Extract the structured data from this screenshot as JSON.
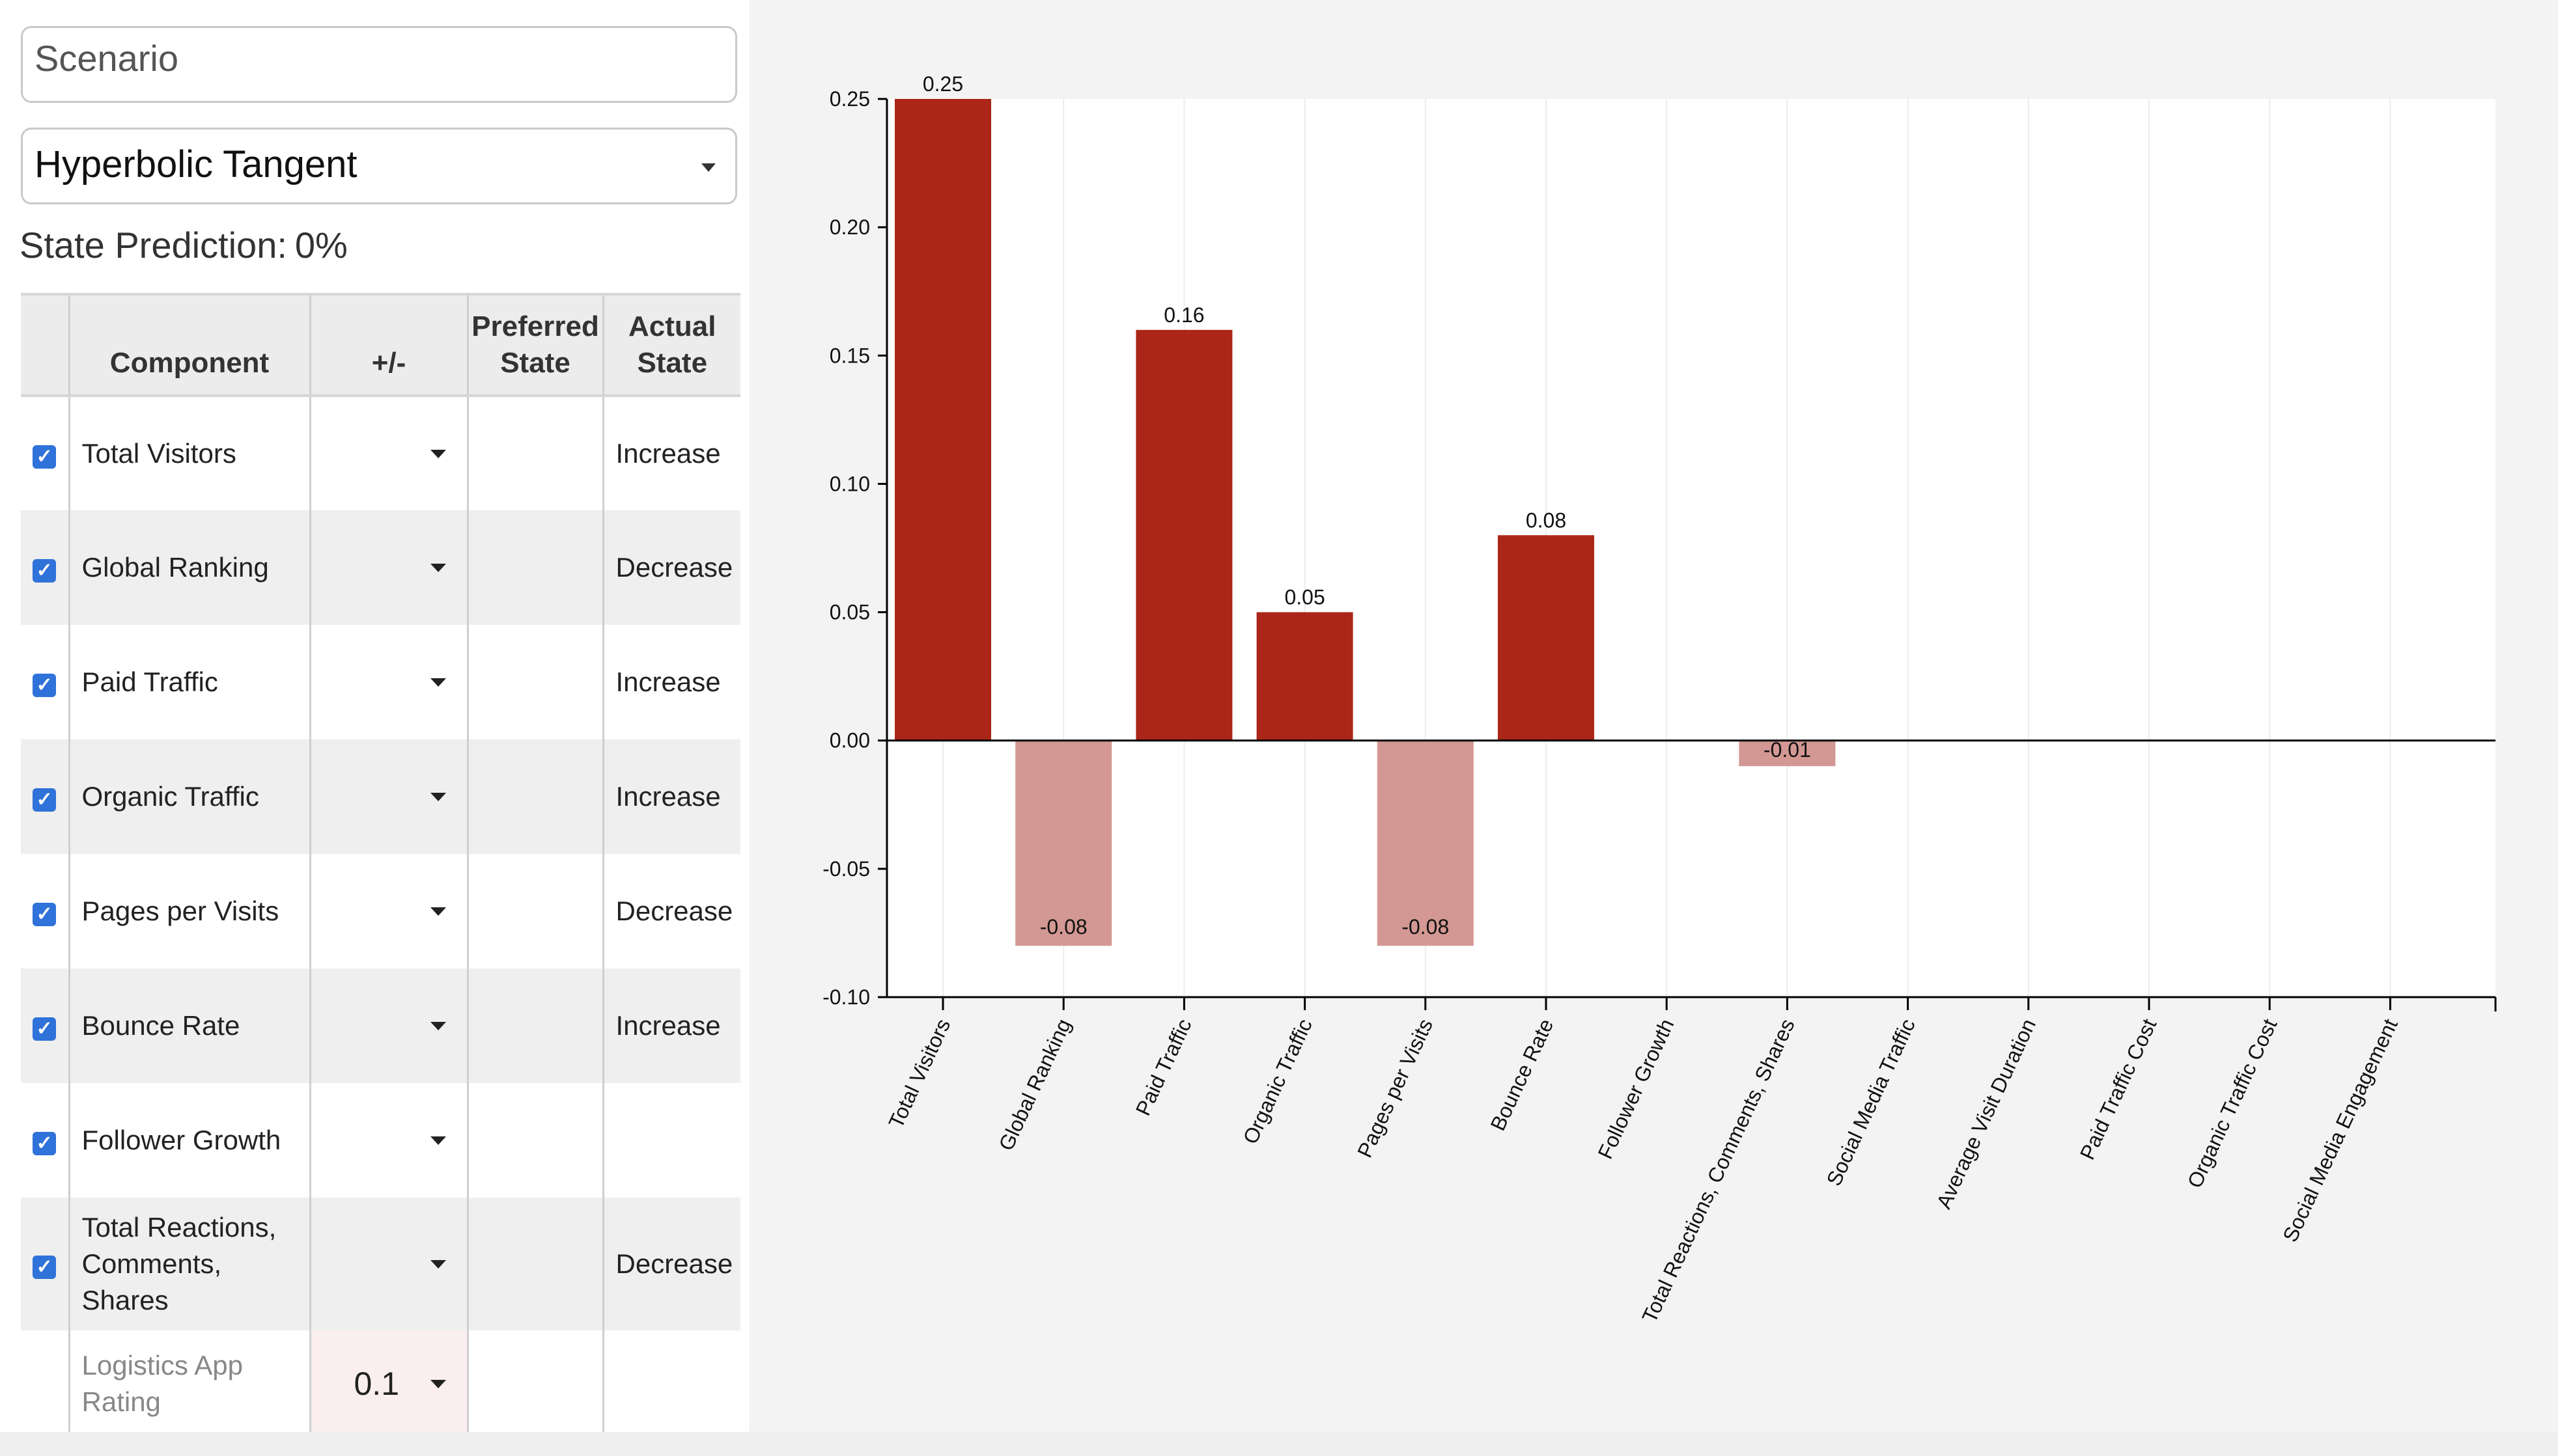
{
  "scenario": {
    "placeholder": "Scenario"
  },
  "method": {
    "selected": "Hyperbolic Tangent"
  },
  "prediction": {
    "label": "State Prediction:",
    "value": "0%"
  },
  "table": {
    "headers": {
      "component": "Component",
      "plusminus": "+/-",
      "preferred": "Preferred State",
      "actual": "Actual State"
    },
    "rows": [
      {
        "checked": true,
        "component": "Total Visitors",
        "actual": "Increase"
      },
      {
        "checked": true,
        "component": "Global Ranking",
        "actual": "Decrease"
      },
      {
        "checked": true,
        "component": "Paid Traffic",
        "actual": "Increase"
      },
      {
        "checked": true,
        "component": "Organic Traffic",
        "actual": "Increase"
      },
      {
        "checked": true,
        "component": "Pages per Visits",
        "actual": "Decrease"
      },
      {
        "checked": true,
        "component": "Bounce Rate",
        "actual": "Increase"
      },
      {
        "checked": true,
        "component": "Follower Growth",
        "actual": ""
      },
      {
        "checked": true,
        "component": "Total Reactions, Comments, Shares",
        "actual": "Decrease"
      }
    ],
    "input_row": {
      "component": "Logistics App Rating",
      "value": "0.1"
    }
  },
  "colors": {
    "positive": "#ab2618",
    "negative": "#d39893",
    "checkbox": "#2f72d9"
  },
  "chart_data": {
    "type": "bar",
    "categories": [
      "Total Visitors",
      "Global Ranking",
      "Paid Traffic",
      "Organic Traffic",
      "Pages per Visits",
      "Bounce Rate",
      "Follower Growth",
      "Total Reactions, Comments, Shares",
      "Social Media Traffic",
      "Average Visit Duration",
      "Paid Traffic Cost",
      "Organic Traffic Cost",
      "Social Media Engagement"
    ],
    "values": [
      0.25,
      -0.08,
      0.16,
      0.05,
      -0.08,
      0.08,
      0,
      -0.01,
      0,
      0,
      0,
      0,
      0
    ],
    "labels": [
      "0.25",
      "-0.08",
      "0.16",
      "0.05",
      "-0.08",
      "0.08",
      "",
      "-0.01",
      "",
      "",
      "",
      "",
      ""
    ],
    "yticks": [
      0.25,
      0.2,
      0.15,
      0.1,
      0.05,
      0.0,
      -0.05,
      -0.1
    ],
    "ytick_labels": [
      "0.25",
      "0.20",
      "0.15",
      "0.10",
      "0.05",
      "0.00",
      "-0.05",
      "-0.10"
    ],
    "ylim": [
      -0.1,
      0.25
    ],
    "title": "",
    "xlabel": "",
    "ylabel": ""
  }
}
